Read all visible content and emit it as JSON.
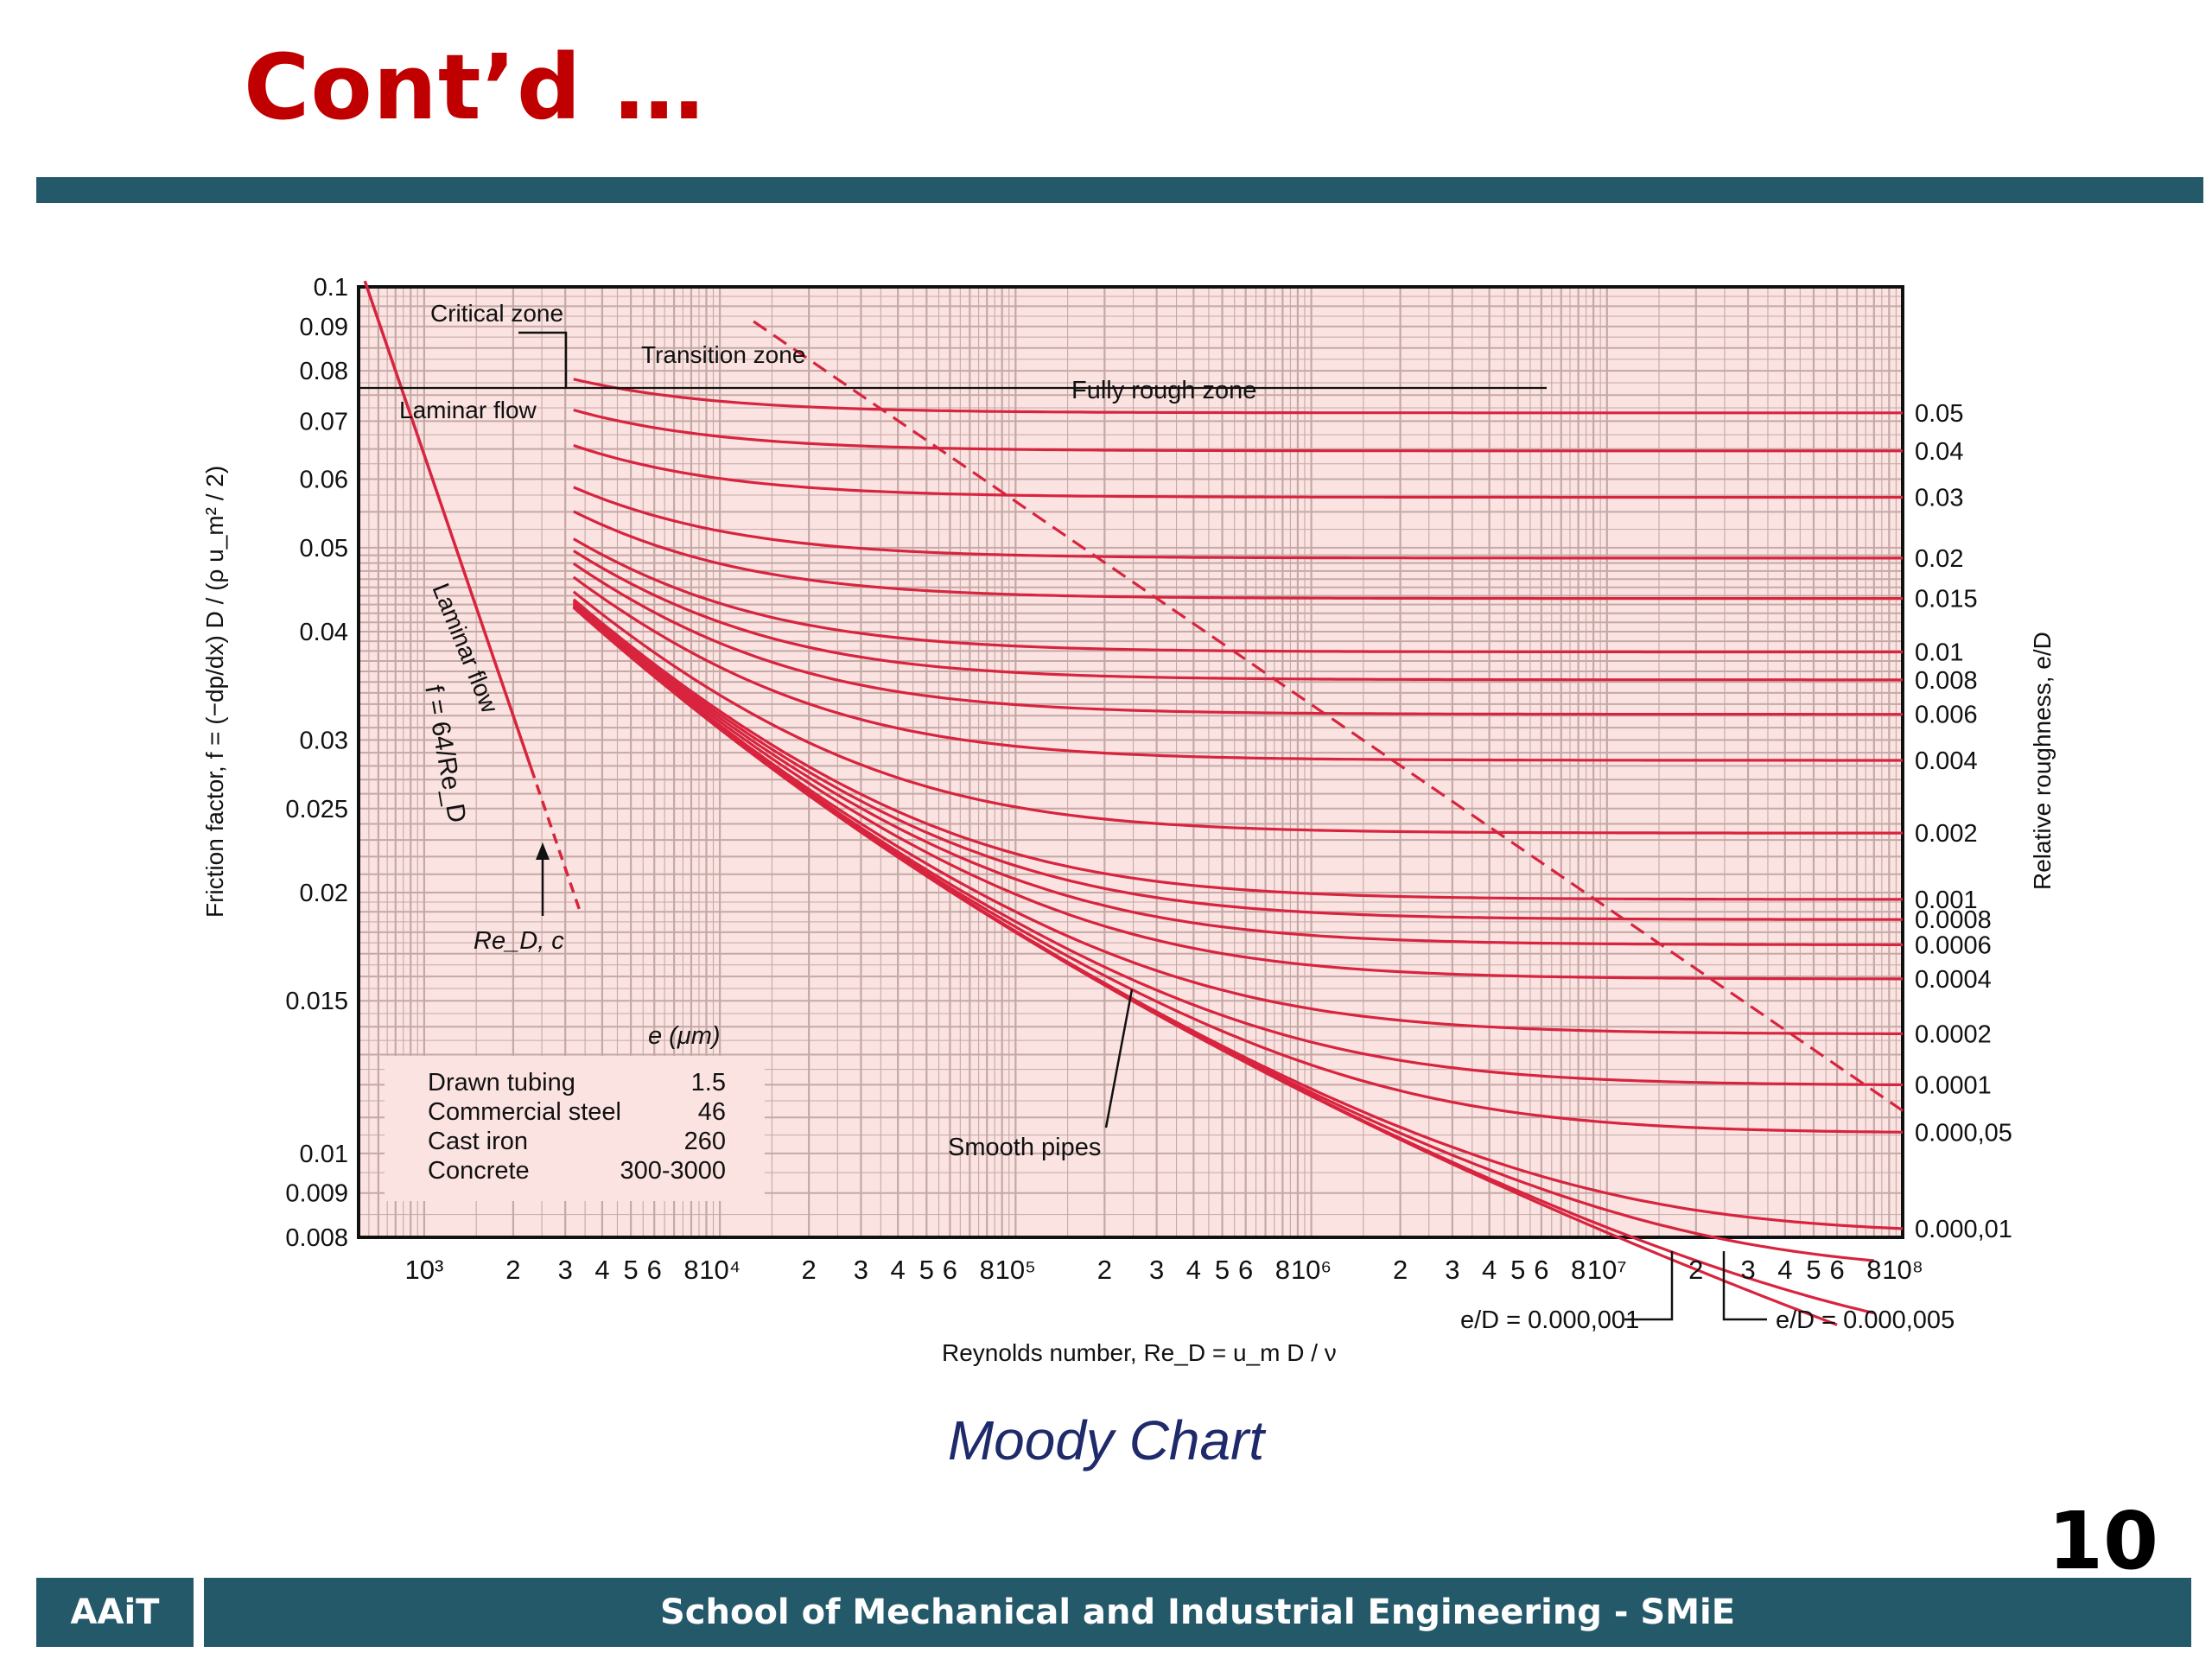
{
  "slide": {
    "title": "Cont’d …",
    "caption": "Moody Chart",
    "page_number": "10",
    "footer_left": "AAiT",
    "footer_right": "School of Mechanical and Industrial Engineering - SMiE"
  },
  "colors": {
    "title": "#c00000",
    "bar": "#24596a",
    "curve": "#d8243e",
    "chart_bg": "#fbe3e1",
    "grid": "#c4a9a6",
    "caption": "#1f2a6b"
  },
  "chart_data": {
    "type": "line",
    "x_scale": "log",
    "y_scale": "log",
    "xlim": [
      600,
      100000000
    ],
    "ylim": [
      0.008,
      0.1
    ],
    "ylabel": "Friction factor, f = (−dp/dx) D / (ρ u_m² / 2)",
    "xlabel": "Reynolds number, Re_D = u_m D / ν",
    "right_axis_label": "Relative roughness, e/D",
    "y_ticks": [
      "0.1",
      "0.09",
      "0.08",
      "0.07",
      "0.06",
      "0.05",
      "0.04",
      "0.03",
      "0.025",
      "0.02",
      "0.015",
      "0.01",
      "0.009",
      "0.008"
    ],
    "y_tick_values": [
      0.1,
      0.09,
      0.08,
      0.07,
      0.06,
      0.05,
      0.04,
      0.03,
      0.025,
      0.02,
      0.015,
      0.01,
      0.009,
      0.008
    ],
    "x_tick_labels": [
      {
        "value": 1000,
        "label": "10³"
      },
      {
        "value": 2000,
        "label": "2"
      },
      {
        "value": 3000,
        "label": "3"
      },
      {
        "value": 4000,
        "label": "4"
      },
      {
        "value": 5000,
        "label": "5"
      },
      {
        "value": 6000,
        "label": "6"
      },
      {
        "value": 8000,
        "label": "8"
      },
      {
        "value": 10000,
        "label": "10⁴"
      },
      {
        "value": 20000,
        "label": "2"
      },
      {
        "value": 30000,
        "label": "3"
      },
      {
        "value": 40000,
        "label": "4"
      },
      {
        "value": 50000,
        "label": "5"
      },
      {
        "value": 60000,
        "label": "6"
      },
      {
        "value": 80000,
        "label": "8"
      },
      {
        "value": 100000,
        "label": "10⁵"
      },
      {
        "value": 200000,
        "label": "2"
      },
      {
        "value": 300000,
        "label": "3"
      },
      {
        "value": 400000,
        "label": "4"
      },
      {
        "value": 500000,
        "label": "5"
      },
      {
        "value": 600000,
        "label": "6"
      },
      {
        "value": 800000,
        "label": "8"
      },
      {
        "value": 1000000,
        "label": "10⁶"
      },
      {
        "value": 2000000,
        "label": "2"
      },
      {
        "value": 3000000,
        "label": "3"
      },
      {
        "value": 4000000,
        "label": "4"
      },
      {
        "value": 5000000,
        "label": "5"
      },
      {
        "value": 6000000,
        "label": "6"
      },
      {
        "value": 8000000,
        "label": "8"
      },
      {
        "value": 10000000,
        "label": "10⁷"
      },
      {
        "value": 20000000,
        "label": "2"
      },
      {
        "value": 30000000,
        "label": "3"
      },
      {
        "value": 40000000,
        "label": "4"
      },
      {
        "value": 50000000,
        "label": "5"
      },
      {
        "value": 60000000,
        "label": "6"
      },
      {
        "value": 80000000,
        "label": "8"
      },
      {
        "value": 100000000,
        "label": "10⁸"
      }
    ],
    "roughness_labels": [
      "0.05",
      "0.04",
      "0.03",
      "0.02",
      "0.015",
      "0.01",
      "0.008",
      "0.006",
      "0.004",
      "0.002",
      "0.001",
      "0.0008",
      "0.0006",
      "0.0004",
      "0.0002",
      "0.0001",
      "0.000,05",
      "0.000,01"
    ],
    "roughness_values": [
      0.05,
      0.04,
      0.03,
      0.02,
      0.015,
      0.01,
      0.008,
      0.006,
      0.004,
      0.002,
      0.001,
      0.0008,
      0.0006,
      0.0004,
      0.0002,
      0.0001,
      5e-05,
      1e-05
    ],
    "bottom_roughness_labels": [
      {
        "label": "= 0.000,001",
        "value": 1e-06
      },
      {
        "label": "= 0.000,005",
        "value": 5e-06
      }
    ],
    "laminar": {
      "x": [
        630,
        2300
      ],
      "y_rule": "f = 64/Re_D",
      "label": "Laminar flow",
      "formula": "f = 64/Re_D"
    },
    "critical_re_label": "Re_D, c",
    "zone_labels": [
      "Critical zone",
      "Laminar flow",
      "Transition zone",
      "Fully rough zone"
    ],
    "smooth_pipes_label": "Smooth pipes",
    "material_table": {
      "header": "e (μm)",
      "rows": [
        {
          "name": "Drawn tubing",
          "value": "1.5"
        },
        {
          "name": "Commercial steel",
          "value": "46"
        },
        {
          "name": "Cast iron",
          "value": "260"
        },
        {
          "name": "Concrete",
          "value": "300-3000"
        }
      ]
    }
  }
}
